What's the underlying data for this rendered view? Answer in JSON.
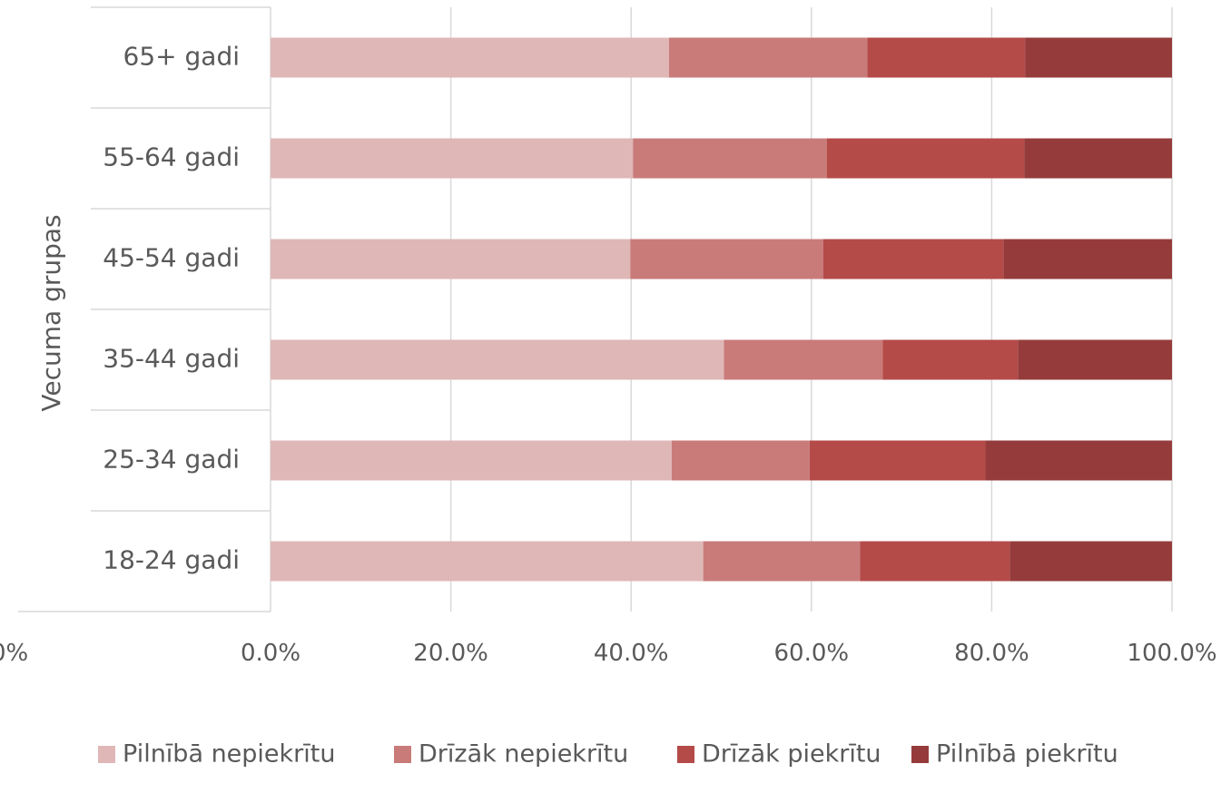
{
  "chart_data": {
    "type": "bar",
    "orientation": "horizontal",
    "stacked": "percent",
    "title": "",
    "ylabel": "Vecuma grupas",
    "xlabel": "",
    "categories": [
      "18-24 gadi",
      "25-34 gadi",
      "35-44 gadi",
      "45-54 gadi",
      "55-64 gadi",
      "65+ gadi"
    ],
    "xlim": [
      0,
      100
    ],
    "x_ticks": [
      "0.0%",
      "20.0%",
      "40.0%",
      "60.0%",
      "80.0%",
      "100.0%"
    ],
    "clipped_tick": "0%",
    "grid": true,
    "legend_position": "bottom",
    "series": [
      {
        "name": "Pilnībā nepiekrītu",
        "color": "#dfb7b7",
        "values": [
          48.0,
          44.5,
          50.3,
          39.9,
          40.2,
          44.2
        ]
      },
      {
        "name": "Drīzāk nepiekrītu",
        "color": "#c97b7a",
        "values": [
          17.4,
          15.3,
          17.6,
          21.4,
          21.5,
          22.0
        ]
      },
      {
        "name": "Drīzāk piekrītu",
        "color": "#b44b49",
        "values": [
          16.6,
          19.5,
          15.0,
          20.0,
          21.9,
          17.5
        ]
      },
      {
        "name": "Pilnībā piekrītu",
        "color": "#963b3b",
        "values": [
          18.0,
          20.7,
          17.1,
          18.7,
          16.4,
          16.3
        ]
      }
    ]
  }
}
